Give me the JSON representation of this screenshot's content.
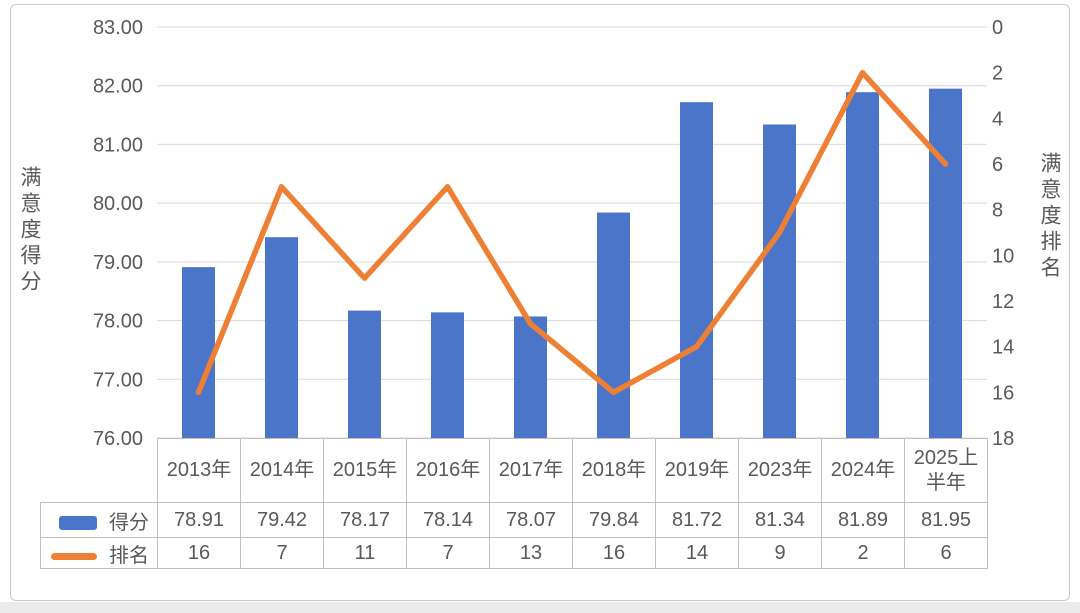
{
  "chart_data": {
    "type": "bar+line combo",
    "categories": [
      "2013年",
      "2014年",
      "2015年",
      "2016年",
      "2017年",
      "2018年",
      "2019年",
      "2023年",
      "2024年",
      "2025上半年"
    ],
    "series": [
      {
        "name": "得分",
        "type": "bar",
        "axis": "left",
        "color": "#4a75c9",
        "values": [
          78.91,
          79.42,
          78.17,
          78.14,
          78.07,
          79.84,
          81.72,
          81.34,
          81.89,
          81.95
        ]
      },
      {
        "name": "排名",
        "type": "line",
        "axis": "right",
        "color": "#ed8035",
        "values": [
          16,
          7,
          11,
          7,
          13,
          16,
          14,
          9,
          2,
          6
        ]
      }
    ],
    "left_axis": {
      "title": "满意度得分",
      "min": 76,
      "max": 83,
      "step": 1,
      "ticks": [
        "83.00",
        "82.00",
        "81.00",
        "80.00",
        "79.00",
        "78.00",
        "77.00",
        "76.00"
      ]
    },
    "right_axis": {
      "title": "满意度排名",
      "min": 0,
      "max": 18,
      "step": 2,
      "reversed": true,
      "ticks": [
        "0",
        "2",
        "4",
        "6",
        "8",
        "10",
        "12",
        "14",
        "16",
        "18"
      ]
    },
    "grid": "horizontal gridlines on",
    "gridline_color": "#d9d9d9",
    "legend_position": "data-table left column"
  },
  "table": {
    "score_row_label": "得分",
    "rank_row_label": "排名",
    "score_values": [
      "78.91",
      "79.42",
      "78.17",
      "78.14",
      "78.07",
      "79.84",
      "81.72",
      "81.34",
      "81.89",
      "81.95"
    ],
    "rank_values": [
      "16",
      "7",
      "11",
      "7",
      "13",
      "16",
      "14",
      "9",
      "2",
      "6"
    ]
  },
  "colors": {
    "bar": "#4a75c9",
    "line": "#ed8035",
    "gridline": "#d9d9d9",
    "text": "#595959",
    "table_border": "#bfbfbf",
    "card_border": "#c9c9c9"
  }
}
